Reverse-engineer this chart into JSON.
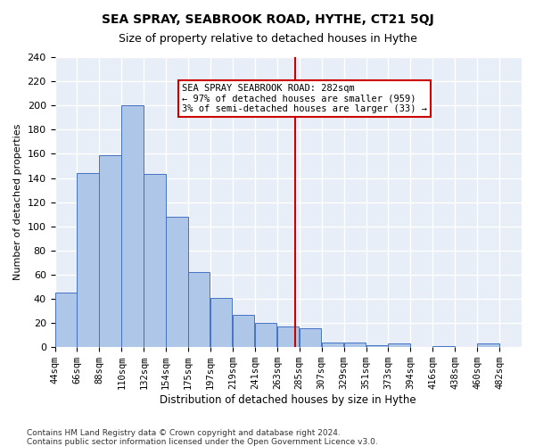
{
  "title": "SEA SPRAY, SEABROOK ROAD, HYTHE, CT21 5QJ",
  "subtitle": "Size of property relative to detached houses in Hythe",
  "xlabel": "Distribution of detached houses by size in Hythe",
  "ylabel": "Number of detached properties",
  "footnote1": "Contains HM Land Registry data © Crown copyright and database right 2024.",
  "footnote2": "Contains public sector information licensed under the Open Government Licence v3.0.",
  "bar_labels": [
    "44sqm",
    "66sqm",
    "88sqm",
    "110sqm",
    "132sqm",
    "154sqm",
    "175sqm",
    "197sqm",
    "219sqm",
    "241sqm",
    "263sqm",
    "285sqm",
    "307sqm",
    "329sqm",
    "351sqm",
    "373sqm",
    "394sqm",
    "416sqm",
    "438sqm",
    "460sqm",
    "482sqm"
  ],
  "bar_values": [
    45,
    144,
    159,
    200,
    143,
    108,
    62,
    41,
    27,
    20,
    17,
    16,
    4,
    4,
    2,
    3,
    0,
    1,
    0,
    3
  ],
  "bar_color": "#aec6e8",
  "bar_edge_color": "#4472c4",
  "bg_color": "#e8eef7",
  "grid_color": "#ffffff",
  "property_line_x": 282,
  "property_sqm": 282,
  "annotation_text": "SEA SPRAY SEABROOK ROAD: 282sqm\n← 97% of detached houses are smaller (959)\n3% of semi-detached houses are larger (33) →",
  "annotation_box_color": "#cc0000",
  "ylim": [
    0,
    240
  ],
  "yticks": [
    0,
    20,
    40,
    60,
    80,
    100,
    120,
    140,
    160,
    180,
    200,
    220,
    240
  ]
}
